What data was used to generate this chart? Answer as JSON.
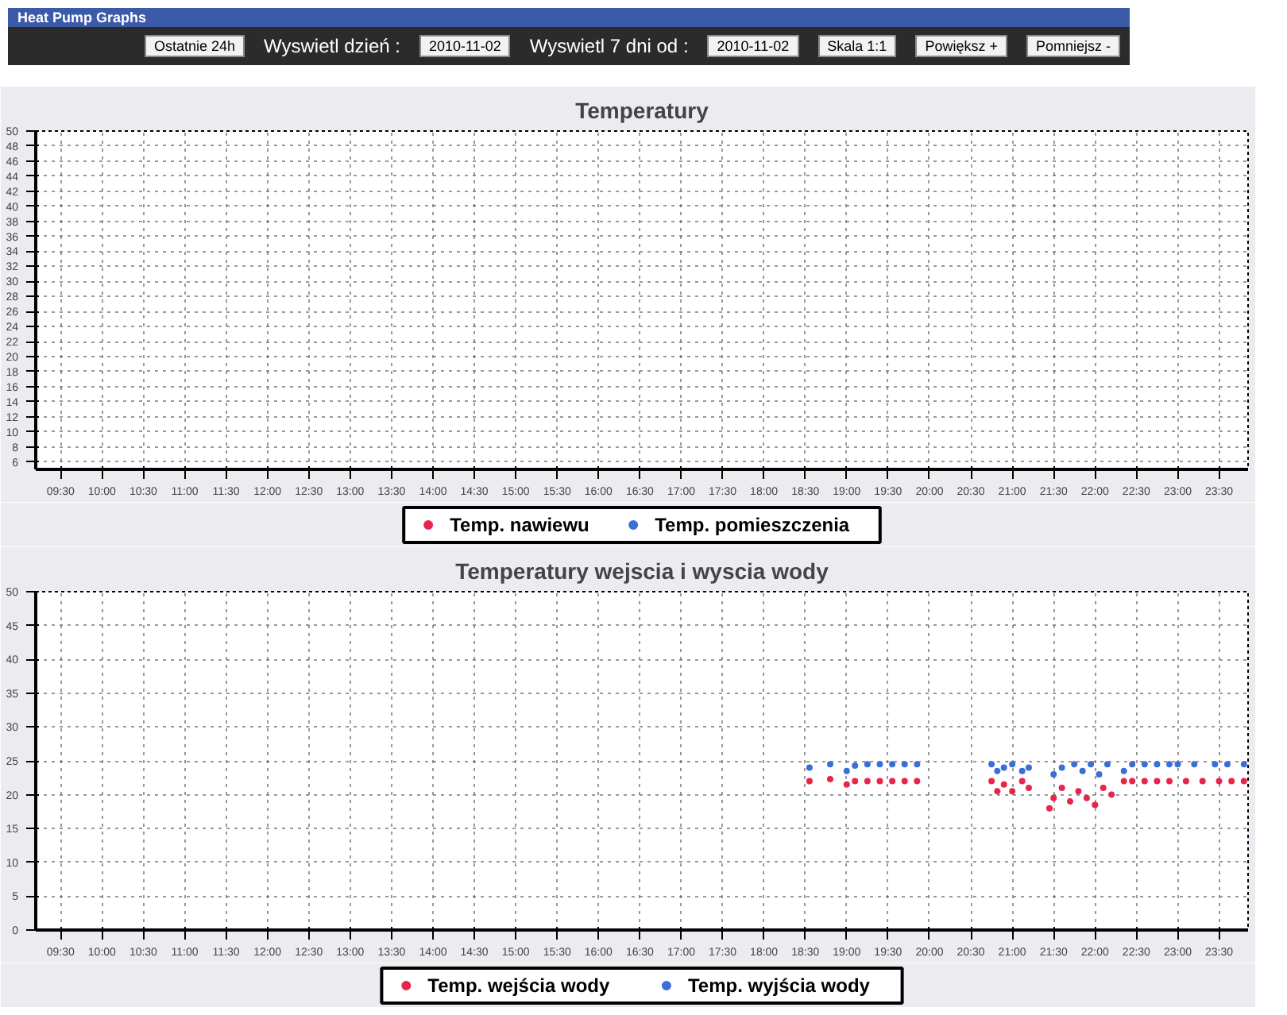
{
  "chart_data": [
    {
      "type": "scatter",
      "title": "Temperatury",
      "annotations": [
        "Heat Pump Graphs",
        "Ostatnie 24h",
        "Wyswietl dzień :",
        "2010-11-02",
        "Wyswietl 7 dni od :",
        "2010-11-02",
        "Skala 1:1",
        "Powiększ +",
        "Pomniejsz -"
      ],
      "categories": [
        "09:30",
        "10:00",
        "10:30",
        "11:00",
        "11:30",
        "12:00",
        "12:30",
        "13:00",
        "13:30",
        "14:00",
        "14:30",
        "15:00",
        "15:30",
        "16:00",
        "16:30",
        "17:00",
        "17:30",
        "18:00",
        "18:30",
        "19:00",
        "19:30",
        "20:00",
        "20:30",
        "21:00",
        "21:30",
        "22:00",
        "22:30",
        "23:00",
        "23:30"
      ],
      "ylim": [
        5,
        50
      ],
      "yticks": [
        6,
        8,
        10,
        12,
        14,
        16,
        18,
        20,
        22,
        24,
        26,
        28,
        30,
        32,
        34,
        36,
        38,
        40,
        42,
        44,
        46,
        48,
        50
      ],
      "grid": true,
      "legend": "bottom",
      "marker": "circle",
      "series": [
        {
          "name": "Temp. nawiewu",
          "color": "#e8254a",
          "values": [
            null,
            null,
            null,
            null,
            null,
            null,
            null,
            null,
            null,
            null,
            null,
            null,
            null,
            null,
            null,
            null,
            null,
            null,
            null,
            null,
            null,
            null,
            null,
            null,
            null,
            null,
            null,
            null,
            null
          ]
        },
        {
          "name": "Temp. pomieszczenia",
          "color": "#3a6fd8",
          "values": [
            null,
            null,
            null,
            null,
            null,
            null,
            null,
            null,
            null,
            null,
            null,
            null,
            null,
            null,
            null,
            null,
            null,
            null,
            null,
            null,
            null,
            null,
            null,
            null,
            null,
            null,
            null,
            null,
            null
          ]
        }
      ]
    },
    {
      "type": "scatter",
      "title": "Temperatury wejscia i wyscia wody",
      "xlim": [
        9.2,
        23.85
      ],
      "ylim": [
        0,
        50
      ],
      "xticks": [
        {
          "value": 9.5,
          "label": "09:30"
        },
        {
          "value": 10,
          "label": "10:00"
        },
        {
          "value": 10.5,
          "label": "10:30"
        },
        {
          "value": 11,
          "label": "11:00"
        },
        {
          "value": 11.5,
          "label": "11:30"
        },
        {
          "value": 12,
          "label": "12:00"
        },
        {
          "value": 12.5,
          "label": "12:30"
        },
        {
          "value": 13,
          "label": "13:00"
        },
        {
          "value": 13.5,
          "label": "13:30"
        },
        {
          "value": 14,
          "label": "14:00"
        },
        {
          "value": 14.5,
          "label": "14:30"
        },
        {
          "value": 15,
          "label": "15:00"
        },
        {
          "value": 15.5,
          "label": "15:30"
        },
        {
          "value": 16,
          "label": "16:00"
        },
        {
          "value": 16.5,
          "label": "16:30"
        },
        {
          "value": 17,
          "label": "17:00"
        },
        {
          "value": 17.5,
          "label": "17:30"
        },
        {
          "value": 18,
          "label": "18:00"
        },
        {
          "value": 18.5,
          "label": "18:30"
        },
        {
          "value": 19,
          "label": "19:00"
        },
        {
          "value": 19.5,
          "label": "19:30"
        },
        {
          "value": 20,
          "label": "20:00"
        },
        {
          "value": 20.5,
          "label": "20:30"
        },
        {
          "value": 21,
          "label": "21:00"
        },
        {
          "value": 21.5,
          "label": "21:30"
        },
        {
          "value": 22,
          "label": "22:00"
        },
        {
          "value": 22.5,
          "label": "22:30"
        },
        {
          "value": 23,
          "label": "23:00"
        },
        {
          "value": 23.5,
          "label": "23:30"
        }
      ],
      "yticks": [
        0,
        5,
        10,
        15,
        20,
        25,
        30,
        35,
        40,
        45,
        50
      ],
      "grid": true,
      "legend": "bottom",
      "marker": "circle",
      "series": [
        {
          "name": "Temp. wejścia wody",
          "color": "#e8254a",
          "x": [
            18.55,
            18.8,
            19.0,
            19.1,
            19.25,
            19.4,
            19.55,
            19.7,
            19.85,
            20.75,
            20.82,
            20.9,
            21.0,
            21.12,
            21.2,
            21.45,
            21.5,
            21.6,
            21.7,
            21.8,
            21.9,
            22.0,
            22.1,
            22.2,
            22.35,
            22.45,
            22.6,
            22.75,
            22.9,
            23.1,
            23.3,
            23.5,
            23.65,
            23.8
          ],
          "values": [
            22,
            22.3,
            21.5,
            22,
            22,
            22,
            22,
            22,
            22,
            22,
            20.5,
            21.5,
            20.5,
            22,
            21,
            18,
            19.5,
            21,
            19,
            20.5,
            19.5,
            18.5,
            21,
            20,
            22,
            22,
            22,
            22,
            22,
            22,
            22,
            22,
            22,
            22
          ]
        },
        {
          "name": "Temp. wyjścia wody",
          "color": "#3a6fd8",
          "x": [
            18.55,
            18.8,
            19.0,
            19.1,
            19.25,
            19.4,
            19.55,
            19.7,
            19.85,
            20.75,
            20.82,
            20.9,
            21.0,
            21.12,
            21.2,
            21.5,
            21.6,
            21.75,
            21.85,
            21.95,
            22.05,
            22.15,
            22.35,
            22.45,
            22.6,
            22.75,
            22.9,
            23.0,
            23.2,
            23.45,
            23.6,
            23.8
          ],
          "values": [
            24,
            24.5,
            23.5,
            24.3,
            24.5,
            24.5,
            24.5,
            24.5,
            24.5,
            24.5,
            23.5,
            24,
            24.5,
            23.5,
            24,
            23,
            24,
            24.5,
            23.5,
            24.5,
            23,
            24.5,
            23.5,
            24.5,
            24.5,
            24.5,
            24.5,
            24.5,
            24.5,
            24.5,
            24.5,
            24.5
          ]
        }
      ]
    }
  ]
}
